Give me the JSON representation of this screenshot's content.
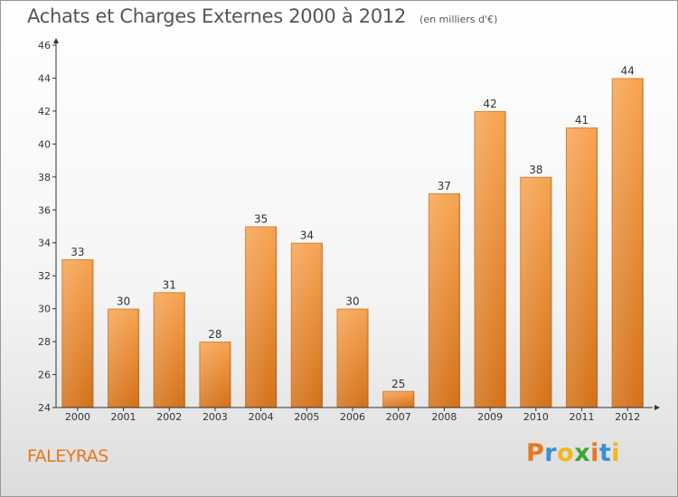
{
  "title": "Achats et Charges Externes 2000 à 2012",
  "subtitle": "(en milliers d'€)",
  "commune": "FALEYRAS",
  "logo": {
    "letters": [
      "P",
      "r",
      "o",
      "x",
      "i",
      "t",
      "i"
    ],
    "colors": [
      "#e8771e",
      "#3a8fd0",
      "#f2b71a",
      "#3fa535",
      "#e8771e",
      "#3a8fd0",
      "#f2b71a"
    ]
  },
  "colors": {
    "bar_top": "#f7a554",
    "bar_bottom": "#d4721a",
    "axis": "#333333",
    "text": "#333333",
    "accent": "#e8771e"
  },
  "chart_data": {
    "type": "bar",
    "title": "Achats et Charges Externes 2000 à 2012",
    "subtitle": "(en milliers d'€)",
    "categories": [
      "2000",
      "2001",
      "2002",
      "2003",
      "2004",
      "2005",
      "2006",
      "2007",
      "2008",
      "2009",
      "2010",
      "2011",
      "2012"
    ],
    "values": [
      33,
      30,
      31,
      28,
      35,
      34,
      30,
      25,
      37,
      42,
      38,
      41,
      44
    ],
    "ylim": [
      24,
      46
    ],
    "yticks": [
      24,
      26,
      28,
      30,
      32,
      34,
      36,
      38,
      40,
      42,
      44,
      46
    ],
    "grid": false,
    "data_labels": true
  }
}
